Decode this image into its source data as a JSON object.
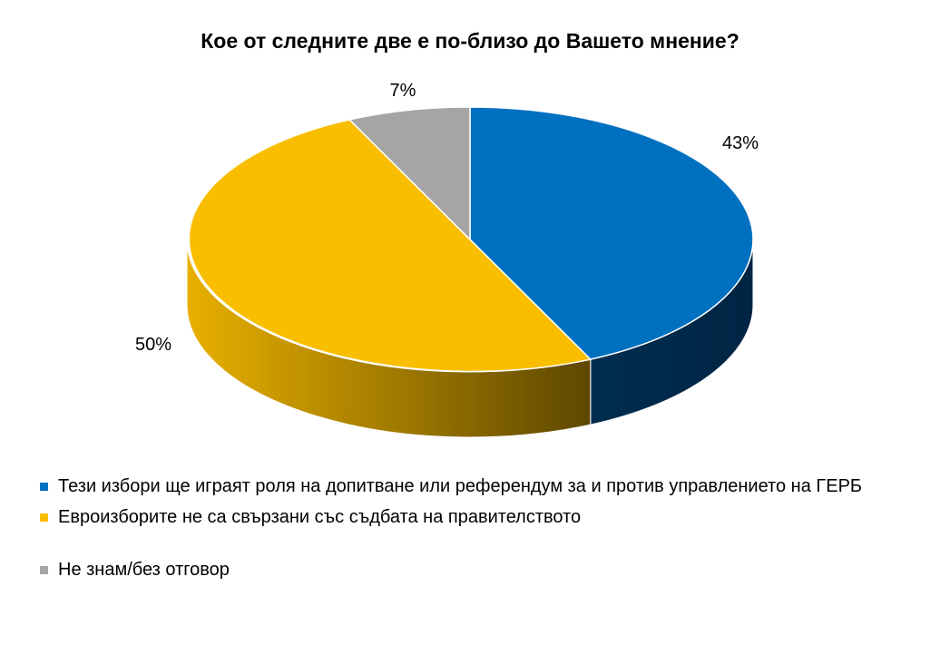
{
  "chart_data": {
    "type": "pie",
    "title": "Кое от следните две е по-близо до Вашето мнение?",
    "series": [
      {
        "name": "",
        "slices": [
          {
            "label": "Тези избори ще играят роля на допитване или референдум за и против управлението на ГЕРБ",
            "value": 43,
            "display": "43%",
            "color": "#0070C0",
            "side_color": "#002D4F"
          },
          {
            "label": "Евроизборите не са свързани със съдбата на правителството",
            "value": 50,
            "display": "50%",
            "color": "#F9BE00",
            "side_color": "#B08600"
          },
          {
            "label": "Не знам/без отговор",
            "value": 7,
            "display": "7%",
            "color": "#A5A5A5",
            "side_color": "#6E6E6E"
          }
        ]
      }
    ],
    "legend_position": "bottom",
    "style": "3d"
  }
}
